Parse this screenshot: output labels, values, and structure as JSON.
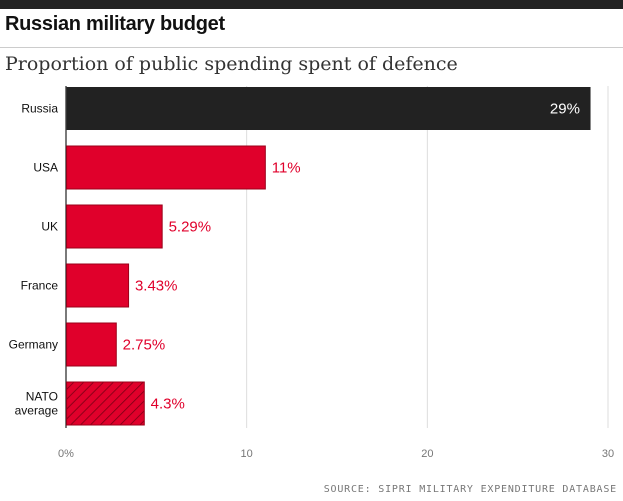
{
  "header": {
    "title": "Russian military budget",
    "subtitle": "Proportion of public spending spent of defence"
  },
  "footer": {
    "source": "SOURCE: SIPRI MILITARY EXPENDITURE DATABASE"
  },
  "colors": {
    "highlight": "#222222",
    "bar": "#e0002b",
    "label": "#e0002b",
    "highlight_label": "#ffffff",
    "grid": "#dddddd"
  },
  "chart_data": {
    "type": "bar",
    "orientation": "horizontal",
    "categories": [
      [
        "Russia"
      ],
      [
        "USA"
      ],
      [
        "UK"
      ],
      [
        "France"
      ],
      [
        "Germany"
      ],
      [
        "NATO",
        "average"
      ]
    ],
    "values": [
      29,
      11,
      5.29,
      3.43,
      2.75,
      4.3
    ],
    "value_labels": [
      "29%",
      "11%",
      "5.29%",
      "3.43%",
      "2.75%",
      "4.3%"
    ],
    "highlight_index": 0,
    "hatched_index": 5,
    "xlim": [
      0,
      30
    ],
    "x_ticks": [
      0,
      10,
      20,
      30
    ],
    "x_tick_labels": [
      "0%",
      "10",
      "20",
      "30"
    ],
    "grid": true
  }
}
